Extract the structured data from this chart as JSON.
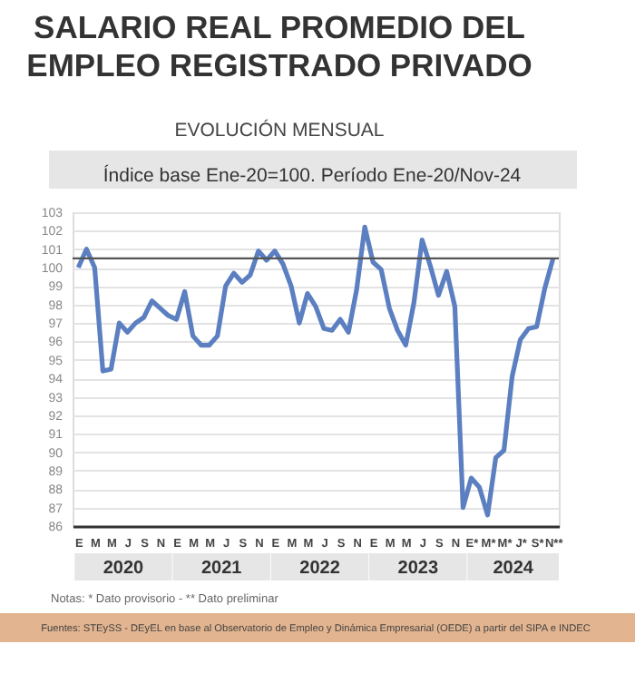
{
  "chart_data": {
    "type": "line",
    "title": "SALARIO REAL PROMEDIO DEL EMPLEO REGISTRADO PRIVADO",
    "subtitle": "EVOLUCIÓN MENSUAL",
    "categories": [
      "E",
      null,
      "M",
      null,
      "M",
      null,
      "J",
      null,
      "S",
      null,
      "N",
      null,
      "E",
      null,
      "M",
      null,
      "M",
      null,
      "J",
      null,
      "S",
      null,
      "N",
      null,
      "E",
      null,
      "M",
      null,
      "M",
      null,
      "J",
      null,
      "S",
      null,
      "N",
      null,
      "E",
      null,
      "M",
      null,
      "M",
      null,
      "J",
      null,
      "S",
      null,
      "N",
      null,
      "E*",
      null,
      "M*",
      null,
      "M*",
      null,
      "J*",
      null,
      "S*",
      null,
      "N**"
    ],
    "series": [
      {
        "color": "#5b7fc0",
        "values": [
          100,
          101,
          100,
          94.4,
          94.5,
          97,
          96.5,
          97,
          97.3,
          98.2,
          97.8,
          97.4,
          97.2,
          98.7,
          96.3,
          95.8,
          95.8,
          96.3,
          99,
          99.7,
          99.2,
          99.6,
          100.9,
          100.4,
          100.9,
          100.2,
          99,
          97,
          98.6,
          97.9,
          96.7,
          96.6,
          97.2,
          96.5,
          98.8,
          102.2,
          100.3,
          99.9,
          97.8,
          96.6,
          95.8,
          98.1,
          101.5,
          100.1,
          98.5,
          99.8,
          97.9,
          87,
          88.6,
          88.1,
          86.6,
          89.7,
          90.1,
          94.1,
          96.1,
          96.7,
          96.8,
          98.9,
          100.5
        ]
      }
    ],
    "ylim": [
      86,
      103
    ],
    "yticks": [
      86,
      87,
      88,
      89,
      90,
      91,
      92,
      93,
      94,
      95,
      96,
      97,
      98,
      99,
      100,
      101,
      102,
      103
    ],
    "grid": "y",
    "marker": "none",
    "line_style": "solid",
    "ref_lines": [
      {
        "axis": "y",
        "value": 100.5,
        "color": "#555555"
      }
    ],
    "annotations": [
      "Índice base Ene-20=100. Período Ene-20/Nov-24",
      "2020",
      "2021",
      "2022",
      "2023",
      "2024",
      "Notas: * Dato provisorio  -  ** Dato preliminar",
      "Fuentes: STEySS - DEyEL en base al Observatorio de Empleo y Dinámica Empresarial (OEDE) a partir del SIPA e INDEC"
    ]
  }
}
